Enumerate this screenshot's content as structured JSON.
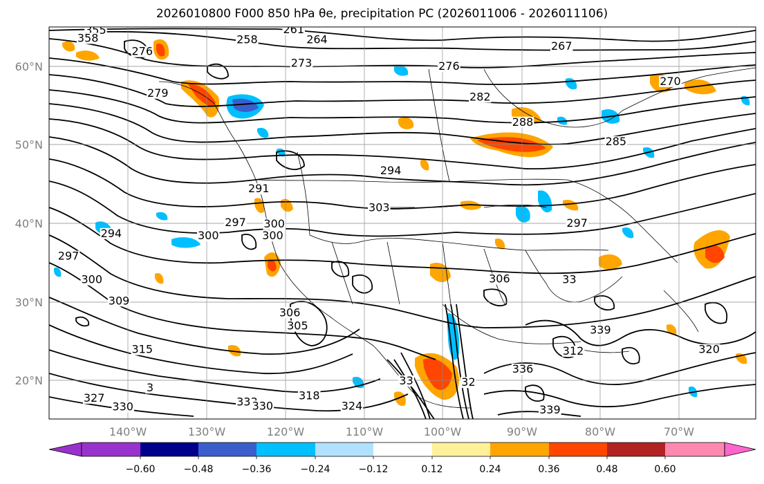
{
  "title": {
    "text": "2026010800 F000 850 hPa θe, precipitation PC (2026011006 - 2026011106)"
  },
  "map": {
    "extent": {
      "lon_min": -149,
      "lon_max": -58,
      "lat_min": 15,
      "lat_max": 65
    },
    "lon_ticks": [
      {
        "value": -140,
        "label": "140°W"
      },
      {
        "value": -130,
        "label": "130°W"
      },
      {
        "value": -120,
        "label": "120°W"
      },
      {
        "value": -110,
        "label": "110°W"
      },
      {
        "value": -100,
        "label": "100°W"
      },
      {
        "value": -90,
        "label": "90°W"
      },
      {
        "value": -80,
        "label": "80°W"
      },
      {
        "value": -70,
        "label": "70°W"
      }
    ],
    "lat_ticks": [
      {
        "value": 60,
        "label": "60°N"
      },
      {
        "value": 50,
        "label": "50°N"
      },
      {
        "value": 40,
        "label": "40°N"
      },
      {
        "value": 30,
        "label": "30°N"
      },
      {
        "value": 20,
        "label": "20°N"
      }
    ],
    "contour_labels": [
      {
        "text": "355",
        "lon": -143,
        "lat": 64.2
      },
      {
        "text": "358",
        "lon": -144,
        "lat": 63.2
      },
      {
        "text": "261",
        "lon": -117.5,
        "lat": 64.3
      },
      {
        "text": "258",
        "lon": -123.5,
        "lat": 63.0
      },
      {
        "text": "264",
        "lon": -114.5,
        "lat": 63.0
      },
      {
        "text": "267",
        "lon": -83,
        "lat": 62.2
      },
      {
        "text": "270",
        "lon": -69,
        "lat": 57.7
      },
      {
        "text": "273",
        "lon": -116.5,
        "lat": 60.0
      },
      {
        "text": "276",
        "lon": -97.5,
        "lat": 59.6
      },
      {
        "text": "276",
        "lon": -137,
        "lat": 61.5
      },
      {
        "text": "279",
        "lon": -135,
        "lat": 56.2
      },
      {
        "text": "282",
        "lon": -93.5,
        "lat": 55.7
      },
      {
        "text": "288",
        "lon": -88,
        "lat": 52.5
      },
      {
        "text": "285",
        "lon": -76,
        "lat": 50.0
      },
      {
        "text": "294",
        "lon": -105,
        "lat": 46.3
      },
      {
        "text": "291",
        "lon": -122,
        "lat": 44.0
      },
      {
        "text": "303",
        "lon": -106.5,
        "lat": 41.6
      },
      {
        "text": "297",
        "lon": -125,
        "lat": 39.7
      },
      {
        "text": "300",
        "lon": -120.2,
        "lat": 38.0
      },
      {
        "text": "300",
        "lon": -128.5,
        "lat": 38.0
      },
      {
        "text": "297",
        "lon": -81,
        "lat": 39.6
      },
      {
        "text": "294",
        "lon": -141,
        "lat": 38.3
      },
      {
        "text": "297",
        "lon": -146.5,
        "lat": 35.4
      },
      {
        "text": "300",
        "lon": -143.5,
        "lat": 32.4
      },
      {
        "text": "309",
        "lon": -140,
        "lat": 29.7
      },
      {
        "text": "306",
        "lon": -91,
        "lat": 32.5
      },
      {
        "text": "33",
        "lon": -82,
        "lat": 32.4
      },
      {
        "text": "315",
        "lon": -137,
        "lat": 23.5
      },
      {
        "text": "3",
        "lon": -136,
        "lat": 18.6
      },
      {
        "text": "327",
        "lon": -143.2,
        "lat": 17.3
      },
      {
        "text": "330",
        "lon": -139.5,
        "lat": 16.2
      },
      {
        "text": "333",
        "lon": -123.5,
        "lat": 16.8
      },
      {
        "text": "330",
        "lon": -121.5,
        "lat": 16.3
      },
      {
        "text": "318",
        "lon": -115.5,
        "lat": 17.6
      },
      {
        "text": "324",
        "lon": -110,
        "lat": 16.3
      },
      {
        "text": "339",
        "lon": -84.5,
        "lat": 15.8
      },
      {
        "text": "336",
        "lon": -88,
        "lat": 21.0
      },
      {
        "text": "312",
        "lon": -81.5,
        "lat": 23.3
      },
      {
        "text": "339",
        "lon": -78,
        "lat": 26.0
      },
      {
        "text": "320",
        "lon": -64,
        "lat": 23.5
      },
      {
        "text": "306",
        "lon": -118,
        "lat": 28.2
      },
      {
        "text": "305",
        "lon": -117,
        "lat": 26.5
      },
      {
        "text": "32",
        "lon": -95,
        "lat": 19.3
      },
      {
        "text": "33",
        "lon": -103,
        "lat": 19.5
      },
      {
        "text": "300",
        "lon": -120,
        "lat": 39.5
      }
    ]
  },
  "legend": {
    "colors": [
      "#9932cc",
      "#00008b",
      "#3a5fcd",
      "#00bfff",
      "#b0e2ff",
      "#ffffff",
      "#fff09a",
      "#ffa500",
      "#ff4500",
      "#b22222",
      "#ff88b0",
      "#ff66cc"
    ],
    "tick_labels": [
      "−0.60",
      "−0.48",
      "−0.36",
      "−0.24",
      "−0.12",
      "0.12",
      "0.24",
      "0.36",
      "0.48",
      "0.60"
    ]
  }
}
